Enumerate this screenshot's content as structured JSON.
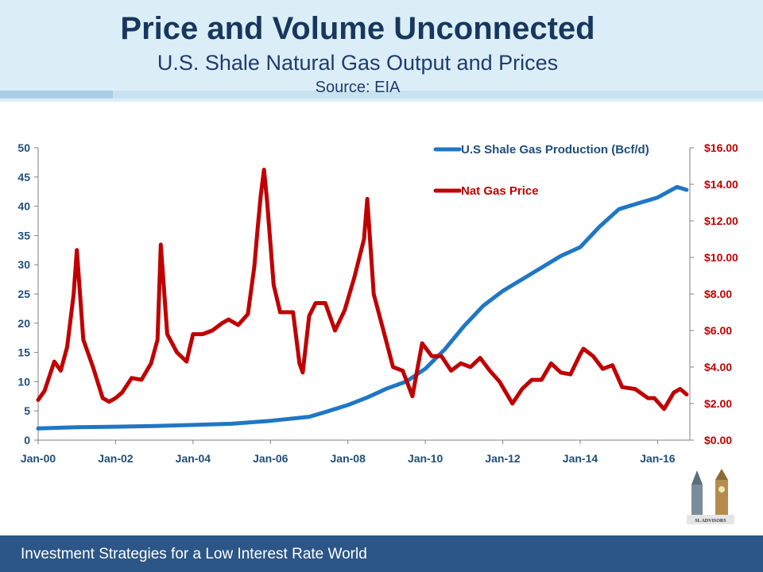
{
  "slide": {
    "title": "Price and Volume Unconnected",
    "subtitle": "U.S. Shale Natural Gas Output and Prices",
    "source": "Source: EIA",
    "footer": "Investment Strategies for a Low Interest Rate World",
    "logo_text": "SL ADVISORS"
  },
  "colors": {
    "production": "#1f77c4",
    "price": "#c00000",
    "left_axis_text": "#1f4e79",
    "right_axis_text": "#c00000",
    "header_bg": "#dbeef8",
    "footer_bg": "#2b5687"
  },
  "chart_data": {
    "type": "line",
    "x_tick_labels": [
      "Jan-00",
      "Jan-02",
      "Jan-04",
      "Jan-06",
      "Jan-08",
      "Jan-10",
      "Jan-12",
      "Jan-14",
      "Jan-16"
    ],
    "x_start": "Jan-00",
    "left_axis": {
      "min": 0,
      "max": 50,
      "ticks": [
        0,
        5,
        10,
        15,
        20,
        25,
        30,
        35,
        40,
        45,
        50
      ]
    },
    "right_axis": {
      "min": 0,
      "max": 16,
      "ticks": [
        "$0.00",
        "$2.00",
        "$4.00",
        "$6.00",
        "$8.00",
        "$10.00",
        "$12.00",
        "$14.00",
        "$16.00"
      ]
    },
    "legend_position": "top-right",
    "grid": false,
    "series": [
      {
        "name": "U.S Shale Gas Production (Bcf/d)",
        "axis": "left",
        "x": [
          "2000-01",
          "2001-01",
          "2002-01",
          "2003-01",
          "2004-01",
          "2005-01",
          "2006-01",
          "2007-01",
          "2007-06",
          "2008-01",
          "2008-07",
          "2009-01",
          "2009-07",
          "2010-01",
          "2010-07",
          "2011-01",
          "2011-07",
          "2012-01",
          "2012-07",
          "2013-01",
          "2013-07",
          "2014-01",
          "2014-07",
          "2015-01",
          "2015-07",
          "2016-01",
          "2016-07",
          "2016-10"
        ],
        "values": [
          2,
          2.2,
          2.3,
          2.4,
          2.6,
          2.8,
          3.3,
          4.0,
          4.8,
          6.0,
          7.3,
          8.8,
          10.0,
          12.2,
          15.5,
          19.5,
          23.0,
          25.5,
          27.5,
          29.5,
          31.5,
          33.0,
          36.5,
          39.5,
          40.5,
          41.5,
          43.3,
          42.8
        ]
      },
      {
        "name": "Nat Gas Price",
        "axis": "right",
        "x": [
          "2000-01",
          "2000-03",
          "2000-06",
          "2000-08",
          "2000-10",
          "2000-12",
          "2001-01",
          "2001-03",
          "2001-06",
          "2001-09",
          "2001-11",
          "2002-01",
          "2002-03",
          "2002-06",
          "2002-09",
          "2002-12",
          "2003-02",
          "2003-03",
          "2003-05",
          "2003-08",
          "2003-11",
          "2004-01",
          "2004-04",
          "2004-07",
          "2004-10",
          "2004-12",
          "2005-03",
          "2005-06",
          "2005-08",
          "2005-09",
          "2005-10",
          "2005-11",
          "2005-12",
          "2006-02",
          "2006-04",
          "2006-08",
          "2006-10",
          "2006-11",
          "2007-01",
          "2007-03",
          "2007-06",
          "2007-09",
          "2007-12",
          "2008-03",
          "2008-06",
          "2008-07",
          "2008-09",
          "2008-12",
          "2009-03",
          "2009-06",
          "2009-09",
          "2009-12",
          "2010-03",
          "2010-06",
          "2010-09",
          "2010-12",
          "2011-03",
          "2011-06",
          "2011-09",
          "2011-12",
          "2012-04",
          "2012-07",
          "2012-10",
          "2013-01",
          "2013-04",
          "2013-07",
          "2013-10",
          "2014-01",
          "2014-02",
          "2014-05",
          "2014-08",
          "2014-11",
          "2015-02",
          "2015-06",
          "2015-10",
          "2015-12",
          "2016-03",
          "2016-06",
          "2016-08",
          "2016-10"
        ],
        "values": [
          2.2,
          2.7,
          4.3,
          3.8,
          5.1,
          8.0,
          10.4,
          5.5,
          4.0,
          2.3,
          2.1,
          2.3,
          2.6,
          3.4,
          3.3,
          4.2,
          5.5,
          10.7,
          5.8,
          4.8,
          4.3,
          5.8,
          5.8,
          6.0,
          6.4,
          6.6,
          6.3,
          6.9,
          9.5,
          11.5,
          13.4,
          14.8,
          13.0,
          8.5,
          7.0,
          7.0,
          4.2,
          3.7,
          6.8,
          7.5,
          7.5,
          6.0,
          7.1,
          8.9,
          11.0,
          13.2,
          8.0,
          6.0,
          4.0,
          3.8,
          2.4,
          5.3,
          4.6,
          4.6,
          3.8,
          4.2,
          4.0,
          4.5,
          3.8,
          3.2,
          2.0,
          2.8,
          3.3,
          3.3,
          4.2,
          3.7,
          3.6,
          4.7,
          5.0,
          4.6,
          3.9,
          4.1,
          2.9,
          2.8,
          2.3,
          2.3,
          1.7,
          2.6,
          2.8,
          2.5
        ]
      }
    ]
  }
}
